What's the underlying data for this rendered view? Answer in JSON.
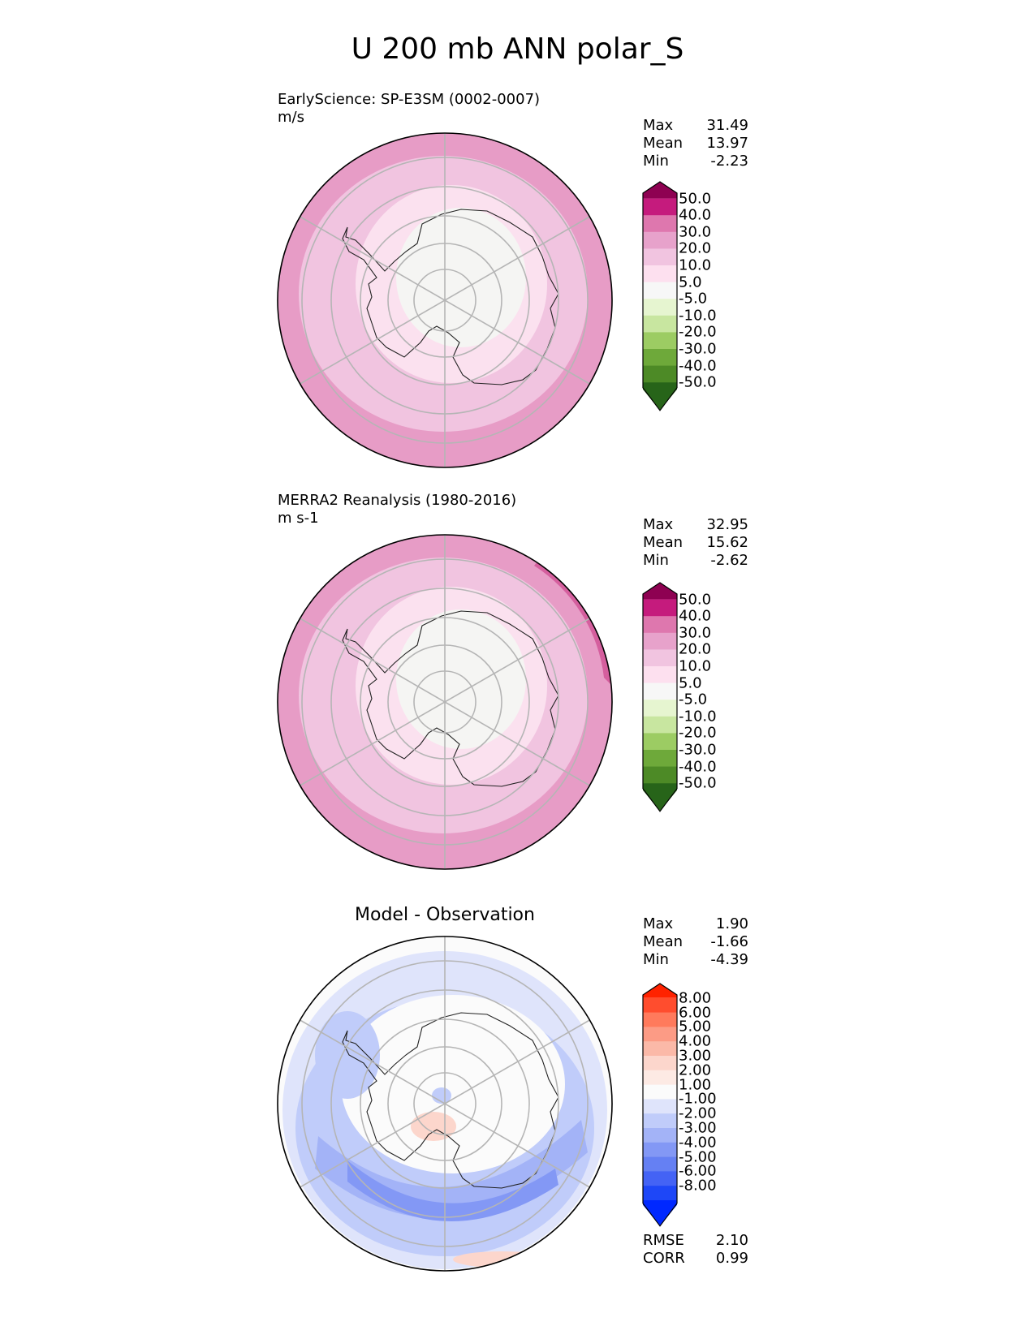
{
  "title": "U 200 mb ANN polar_S",
  "panels": [
    {
      "id": "test",
      "subtitle_line1": "EarlyScience: SP-E3SM (0002-0007)",
      "subtitle_line2": "m/s",
      "stats": {
        "max_label": "Max",
        "max": "31.49",
        "mean_label": "Mean",
        "mean": "13.97",
        "min_label": "Min",
        "min": "-2.23"
      },
      "colorbar": {
        "labels": [
          "50.0",
          "40.0",
          "30.0",
          "20.0",
          "10.0",
          "5.0",
          "-5.0",
          "-10.0",
          "-20.0",
          "-30.0",
          "-40.0",
          "-50.0"
        ],
        "colors_top_to_bottom": [
          "#8e0152",
          "#c51b7d",
          "#de77ae",
          "#e7a2cb",
          "#f1c4e0",
          "#fde0ef",
          "#f7f7f7",
          "#e6f5d0",
          "#c8e6a0",
          "#9ccc63",
          "#6ea93a",
          "#4d8a26",
          "#276419"
        ]
      },
      "rings": [
        "#e79cc6",
        "#f1c4e0",
        "#fbe1ef",
        "#f5f5f3"
      ]
    },
    {
      "id": "reference",
      "subtitle_line1": "MERRA2 Reanalysis (1980-2016)",
      "subtitle_line2": "m s-1",
      "stats": {
        "max_label": "Max",
        "max": "32.95",
        "mean_label": "Mean",
        "mean": "15.62",
        "min_label": "Min",
        "min": "-2.62"
      },
      "colorbar": {
        "labels": [
          "50.0",
          "40.0",
          "30.0",
          "20.0",
          "10.0",
          "5.0",
          "-5.0",
          "-10.0",
          "-20.0",
          "-30.0",
          "-40.0",
          "-50.0"
        ],
        "colors_top_to_bottom": [
          "#8e0152",
          "#c51b7d",
          "#de77ae",
          "#e7a2cb",
          "#f1c4e0",
          "#fde0ef",
          "#f7f7f7",
          "#e6f5d0",
          "#c8e6a0",
          "#9ccc63",
          "#6ea93a",
          "#4d8a26",
          "#276419"
        ]
      },
      "rings": [
        "#e79cc6",
        "#f1c4e0",
        "#fbe1ef",
        "#f5f5f3"
      ]
    },
    {
      "id": "diff",
      "center_title": "Model - Observation",
      "stats": {
        "max_label": "Max",
        "max": "1.90",
        "mean_label": "Mean",
        "mean": "-1.66",
        "min_label": "Min",
        "min": "-4.39"
      },
      "colorbar": {
        "labels": [
          "8.00",
          "6.00",
          "5.00",
          "4.00",
          "3.00",
          "2.00",
          "1.00",
          "-1.00",
          "-2.00",
          "-3.00",
          "-4.00",
          "-5.00",
          "-6.00",
          "-8.00"
        ],
        "colors_top_to_bottom": [
          "#ff2200",
          "#ff4d2e",
          "#ff7a5c",
          "#fc9b85",
          "#fbb9a8",
          "#fcd6cc",
          "#fdeae4",
          "#fbfbfb",
          "#dfe4fb",
          "#c0ccfa",
          "#a3b3f7",
          "#8398f5",
          "#6580f3",
          "#4463f5",
          "#1e47f7",
          "#0028ff"
        ]
      },
      "rmse_label": "RMSE",
      "rmse": "2.10",
      "corr_label": "CORR",
      "corr": "0.99"
    }
  ]
}
